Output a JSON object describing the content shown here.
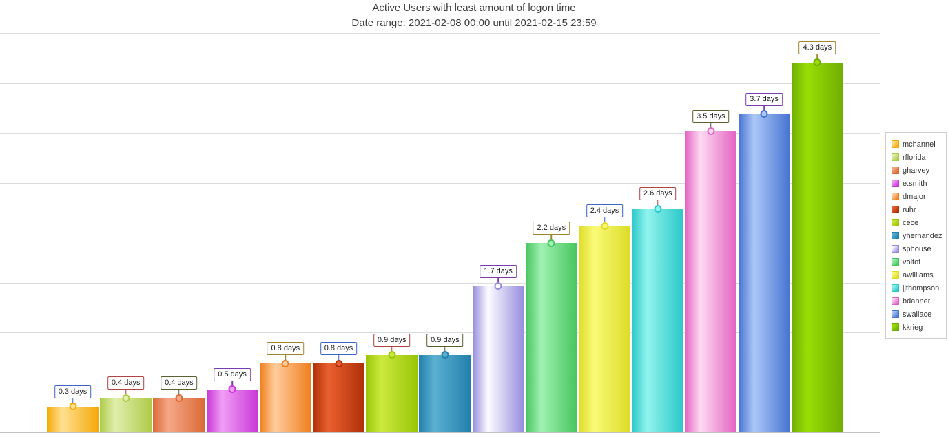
{
  "header": {
    "title": "Active Users with least amount of logon time",
    "subtitle": "Date range: 2021-02-08 00:00 until 2021-02-15 23:59"
  },
  "chart_data": {
    "type": "bar",
    "title": "Active Users with least amount of logon time",
    "subtitle": "Date range: 2021-02-08 00:00 until 2021-02-15 23:59",
    "value_unit": "days",
    "ylim": [
      0,
      4.64
    ],
    "grid": {
      "horizontal_divisions": 8,
      "gridline_color": "#dcdcdc",
      "baseline_color": "#c3c3c3",
      "axis_color": "#c3c3c3"
    },
    "legend_position": "right",
    "xlabel": "",
    "ylabel": "",
    "categories": [
      "mchannel",
      "rflorida",
      "gharvey",
      "e.smith",
      "dmajor",
      "ruhr",
      "cece",
      "yhernandez",
      "sphouse",
      "voltof",
      "awilliams",
      "jjthompson",
      "bdanner",
      "swallace",
      "kkrieg"
    ],
    "values": [
      0.3,
      0.4,
      0.4,
      0.5,
      0.8,
      0.8,
      0.9,
      0.9,
      1.7,
      2.2,
      2.4,
      2.6,
      3.5,
      3.7,
      4.3
    ],
    "points": [
      {
        "user": "mchannel",
        "value": 0.3,
        "label": "0.3 days",
        "bar_dark": "#F4A908",
        "bar_light": "#FFE091",
        "callout_color": "#3E63C0"
      },
      {
        "user": "rflorida",
        "value": 0.4,
        "label": "0.4 days",
        "bar_dark": "#AECB49",
        "bar_light": "#E1EEAE",
        "callout_color": "#B04443"
      },
      {
        "user": "gharvey",
        "value": 0.4,
        "label": "0.4 days",
        "bar_dark": "#DA6A36",
        "bar_light": "#F6A888",
        "callout_color": "#5C5F30"
      },
      {
        "user": "e.smith",
        "value": 0.5,
        "label": "0.5 days",
        "bar_dark": "#C837D8",
        "bar_light": "#F09DF4",
        "callout_color": "#7A3AB0"
      },
      {
        "user": "dmajor",
        "value": 0.8,
        "label": "0.8 days",
        "bar_dark": "#EE7E1C",
        "bar_light": "#FFCD9E",
        "callout_color": "#A2842A"
      },
      {
        "user": "ruhr",
        "value": 0.8,
        "label": "0.8 days",
        "bar_dark": "#AE3007",
        "bar_light": "#EA6030",
        "callout_color": "#3E63C0"
      },
      {
        "user": "cece",
        "value": 0.9,
        "label": "0.9 days",
        "bar_dark": "#9AC506",
        "bar_light": "#CBE940",
        "callout_color": "#B04443"
      },
      {
        "user": "yhernandez",
        "value": 0.9,
        "label": "0.9 days",
        "bar_dark": "#2280AB",
        "bar_light": "#5BB0D2",
        "callout_color": "#5C5F30"
      },
      {
        "user": "sphouse",
        "value": 1.7,
        "label": "1.7 days",
        "bar_dark": "#968CDE",
        "bar_light": "#FDFCFF",
        "callout_color": "#7A3AB0"
      },
      {
        "user": "voltof",
        "value": 2.2,
        "label": "2.2 days",
        "bar_dark": "#46C55E",
        "bar_light": "#A0F1B2",
        "callout_color": "#A2842A"
      },
      {
        "user": "awilliams",
        "value": 2.4,
        "label": "2.4 days",
        "bar_dark": "#DCDC26",
        "bar_light": "#FAFA78",
        "callout_color": "#3E63C0"
      },
      {
        "user": "jjthompson",
        "value": 2.6,
        "label": "2.6 days",
        "bar_dark": "#2BC7C7",
        "bar_light": "#90F4EE",
        "callout_color": "#B04443"
      },
      {
        "user": "bdanner",
        "value": 3.5,
        "label": "3.5 days",
        "bar_dark": "#E362C0",
        "bar_light": "#FDDAF2",
        "callout_color": "#5C5F30"
      },
      {
        "user": "swallace",
        "value": 3.7,
        "label": "3.7 days",
        "bar_dark": "#4673D1",
        "bar_light": "#ACC8F7",
        "callout_color": "#7A3AB0"
      },
      {
        "user": "kkrieg",
        "value": 4.3,
        "label": "4.3 days",
        "bar_dark": "#6FAE00",
        "bar_light": "#9ADE06",
        "callout_color": "#A2842A"
      }
    ]
  }
}
